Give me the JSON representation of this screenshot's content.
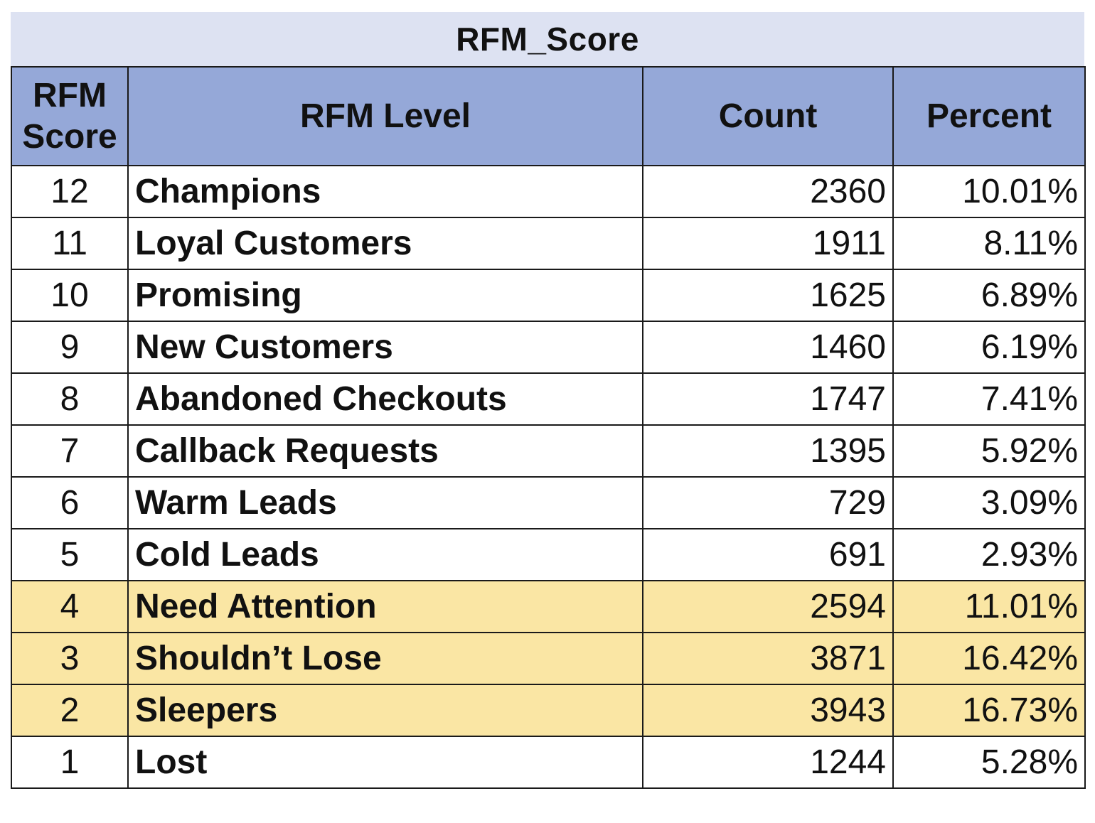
{
  "title": "RFM_Score",
  "headers": {
    "score": "RFM Score",
    "level": "RFM Level",
    "count": "Count",
    "percent": "Percent"
  },
  "colors": {
    "title_bg": "#dde2f2",
    "header_bg": "#95a8d8",
    "highlight_bg": "#fae6a4"
  },
  "rows": [
    {
      "score": "12",
      "level": "Champions",
      "count": "2360",
      "percent": "10.01%",
      "highlight": false
    },
    {
      "score": "11",
      "level": "Loyal Customers",
      "count": "1911",
      "percent": "8.11%",
      "highlight": false
    },
    {
      "score": "10",
      "level": "Promising",
      "count": "1625",
      "percent": "6.89%",
      "highlight": false
    },
    {
      "score": "9",
      "level": "New Customers",
      "count": "1460",
      "percent": "6.19%",
      "highlight": false
    },
    {
      "score": "8",
      "level": "Abandoned Checkouts",
      "count": "1747",
      "percent": "7.41%",
      "highlight": false
    },
    {
      "score": "7",
      "level": "Callback Requests",
      "count": "1395",
      "percent": "5.92%",
      "highlight": false
    },
    {
      "score": "6",
      "level": "Warm Leads",
      "count": "729",
      "percent": "3.09%",
      "highlight": false
    },
    {
      "score": "5",
      "level": "Cold Leads",
      "count": "691",
      "percent": "2.93%",
      "highlight": false
    },
    {
      "score": "4",
      "level": "Need Attention",
      "count": "2594",
      "percent": "11.01%",
      "highlight": true
    },
    {
      "score": "3",
      "level": "Shouldn’t Lose",
      "count": "3871",
      "percent": "16.42%",
      "highlight": true
    },
    {
      "score": "2",
      "level": "Sleepers",
      "count": "3943",
      "percent": "16.73%",
      "highlight": true
    },
    {
      "score": "1",
      "level": "Lost",
      "count": "1244",
      "percent": "5.28%",
      "highlight": false
    }
  ]
}
